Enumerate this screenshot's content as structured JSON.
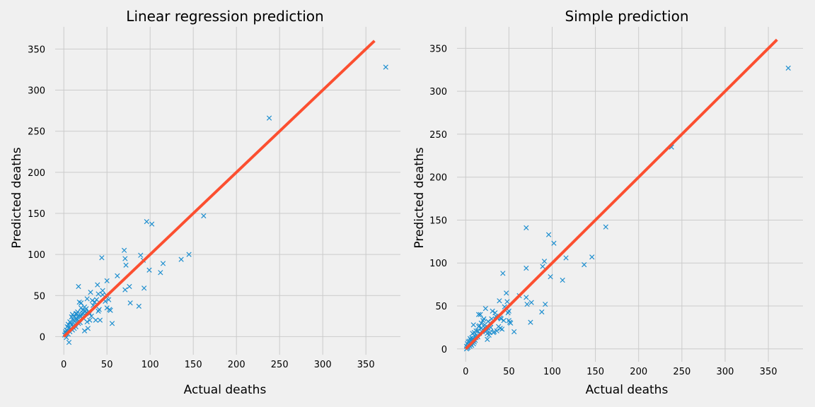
{
  "chart_data": [
    {
      "type": "scatter",
      "title": "Linear regression prediction",
      "xlabel": "Actual deaths",
      "ylabel": "Predicted deaths",
      "xlim": [
        -10,
        390
      ],
      "ylim": [
        -22,
        377
      ],
      "xticks": [
        0,
        50,
        100,
        150,
        200,
        250,
        300,
        350
      ],
      "yticks": [
        0,
        50,
        100,
        150,
        200,
        250,
        300,
        350
      ],
      "grid": true,
      "colors": {
        "points": "#1f8fcf",
        "line": "#fc4f30"
      },
      "reference_line": {
        "x": [
          0,
          360
        ],
        "y": [
          0,
          360
        ]
      },
      "x": [
        373,
        238,
        162,
        145,
        136,
        115,
        112,
        102,
        99,
        96,
        93,
        92,
        89,
        87,
        77,
        76,
        72,
        71,
        71,
        70,
        62,
        56,
        54,
        53,
        52,
        50,
        50,
        50,
        48,
        45,
        45,
        44,
        42,
        41,
        40,
        40,
        39,
        38,
        37,
        36,
        34,
        32,
        31,
        30,
        30,
        29,
        28,
        27,
        27,
        26,
        25,
        24,
        23,
        22,
        21,
        20,
        20,
        19,
        18,
        18,
        17,
        17,
        16,
        16,
        15,
        15,
        14,
        14,
        13,
        12,
        12,
        11,
        11,
        10,
        10,
        9,
        9,
        8,
        8,
        7,
        7,
        6,
        6,
        5,
        5,
        4,
        4,
        3,
        3,
        2,
        2,
        1,
        20,
        15,
        26,
        33,
        12,
        22,
        24
      ],
      "y": [
        328,
        266,
        147,
        100,
        94,
        89,
        78,
        137,
        81,
        140,
        59,
        93,
        99,
        37,
        41,
        61,
        87,
        95,
        57,
        105,
        74,
        16,
        32,
        33,
        45,
        68,
        35,
        50,
        43,
        51,
        56,
        96,
        20,
        33,
        31,
        52,
        63,
        45,
        20,
        42,
        38,
        25,
        54,
        28,
        20,
        30,
        10,
        18,
        46,
        29,
        31,
        7,
        22,
        32,
        27,
        25,
        41,
        17,
        42,
        25,
        16,
        61,
        24,
        30,
        20,
        28,
        12,
        28,
        15,
        24,
        10,
        20,
        13,
        8,
        27,
        14,
        24,
        10,
        17,
        6,
        18,
        -7,
        11,
        3,
        15,
        7,
        12,
        -1,
        8,
        4,
        6,
        2,
        35,
        22,
        34,
        44,
        19,
        29,
        36
      ]
    },
    {
      "type": "scatter",
      "title": "Simple prediction",
      "xlabel": "Actual deaths",
      "ylabel": "Predicted deaths",
      "xlim": [
        -10,
        390
      ],
      "ylim": [
        -15,
        375
      ],
      "xticks": [
        0,
        50,
        100,
        150,
        200,
        250,
        300,
        350
      ],
      "yticks": [
        0,
        50,
        100,
        150,
        200,
        250,
        300,
        350
      ],
      "grid": true,
      "colors": {
        "points": "#1f8fcf",
        "line": "#fc4f30"
      },
      "reference_line": {
        "x": [
          0,
          360
        ],
        "y": [
          0,
          360
        ]
      },
      "x": [
        373,
        238,
        162,
        146,
        137,
        116,
        112,
        102,
        98,
        96,
        92,
        91,
        89,
        88,
        76,
        75,
        71,
        70,
        70,
        70,
        62,
        56,
        52,
        51,
        50,
        50,
        49,
        48,
        47,
        45,
        44,
        43,
        42,
        41,
        40,
        40,
        39,
        38,
        37,
        36,
        34,
        33,
        32,
        31,
        30,
        29,
        28,
        27,
        26,
        25,
        25,
        24,
        23,
        22,
        21,
        20,
        20,
        19,
        18,
        17,
        16,
        16,
        15,
        15,
        14,
        13,
        12,
        12,
        11,
        11,
        10,
        10,
        9,
        9,
        8,
        8,
        7,
        7,
        6,
        6,
        5,
        5,
        4,
        4,
        3,
        3,
        2,
        2,
        1,
        1,
        18,
        22,
        28,
        35,
        14,
        26
      ],
      "y": [
        327,
        235,
        142,
        107,
        98,
        106,
        80,
        123,
        84,
        133,
        52,
        102,
        96,
        43,
        54,
        31,
        52,
        141,
        60,
        94,
        62,
        20,
        30,
        31,
        44,
        33,
        42,
        55,
        65,
        49,
        33,
        88,
        23,
        35,
        24,
        36,
        56,
        26,
        36,
        21,
        42,
        20,
        19,
        44,
        35,
        25,
        30,
        16,
        24,
        18,
        11,
        21,
        47,
        28,
        35,
        22,
        33,
        20,
        24,
        40,
        27,
        18,
        26,
        40,
        21,
        15,
        13,
        21,
        10,
        15,
        8,
        19,
        6,
        28,
        11,
        18,
        4,
        13,
        6,
        10,
        3,
        12,
        5,
        9,
        2,
        8,
        1,
        6,
        0,
        3,
        30,
        25,
        19,
        38,
        14,
        32
      ]
    }
  ]
}
